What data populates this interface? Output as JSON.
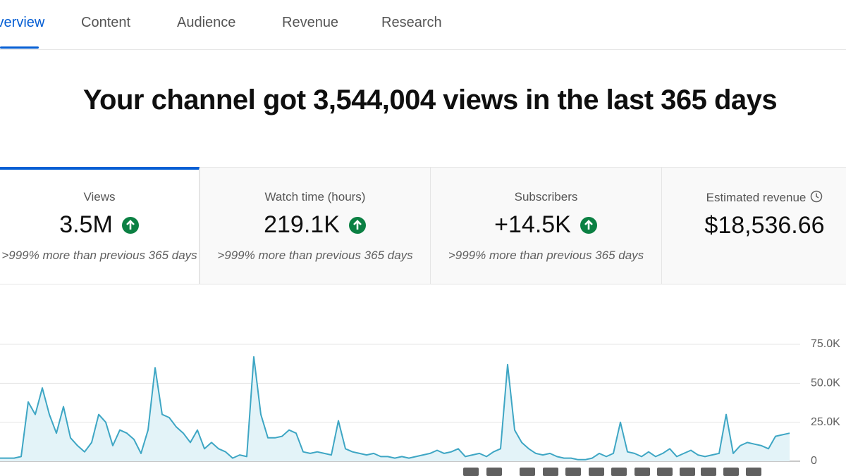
{
  "tabs": [
    "Overview",
    "Content",
    "Audience",
    "Revenue",
    "Research"
  ],
  "headline": "Your channel got 3,544,004 views in the last 365 days",
  "metrics": [
    {
      "label": "Views",
      "value": "3.5M",
      "note": ">999% more than previous 365 days"
    },
    {
      "label": "Watch time (hours)",
      "value": "219.1K",
      "note": ">999% more than previous 365 days"
    },
    {
      "label": "Subscribers",
      "value": "+14.5K",
      "note": ">999% more than previous 365 days"
    },
    {
      "label": "Estimated revenue",
      "value": "$18,536.66"
    }
  ],
  "chart_data": {
    "type": "line",
    "color": "#3ea6c4",
    "fill": "#e3f3f8",
    "grid": true,
    "ylim": [
      0,
      75000
    ],
    "yticks": [
      0,
      {
        "value": 25000,
        "label": "25.0K"
      },
      {
        "value": 50000,
        "label": "50.0K"
      },
      {
        "value": 75000,
        "label": "75.0K"
      }
    ],
    "values": [
      2000,
      2000,
      2000,
      3000,
      38000,
      30000,
      47000,
      30000,
      18000,
      35000,
      15000,
      10000,
      6000,
      12000,
      30000,
      25000,
      10000,
      20000,
      18000,
      14000,
      5000,
      20000,
      60000,
      30000,
      28000,
      22000,
      18000,
      12000,
      20000,
      8000,
      12000,
      8000,
      6000,
      2000,
      4000,
      3000,
      67000,
      30000,
      15000,
      15000,
      16000,
      20000,
      18000,
      6000,
      5000,
      6000,
      5000,
      4000,
      26000,
      8000,
      6000,
      5000,
      4000,
      5000,
      3000,
      3000,
      2000,
      3000,
      2000,
      3000,
      4000,
      5000,
      7000,
      5000,
      6000,
      8000,
      3000,
      4000,
      5000,
      3000,
      6000,
      8000,
      62000,
      20000,
      12000,
      8000,
      5000,
      4000,
      5000,
      3000,
      2000,
      2000,
      1000,
      1000,
      2000,
      5000,
      3000,
      5000,
      25000,
      6000,
      5000,
      3000,
      6000,
      3000,
      5000,
      8000,
      3000,
      5000,
      7000,
      4000,
      3000,
      4000,
      5000,
      30000,
      5000,
      10000,
      12000,
      11000,
      10000,
      8000,
      16000,
      17000,
      18000
    ]
  }
}
